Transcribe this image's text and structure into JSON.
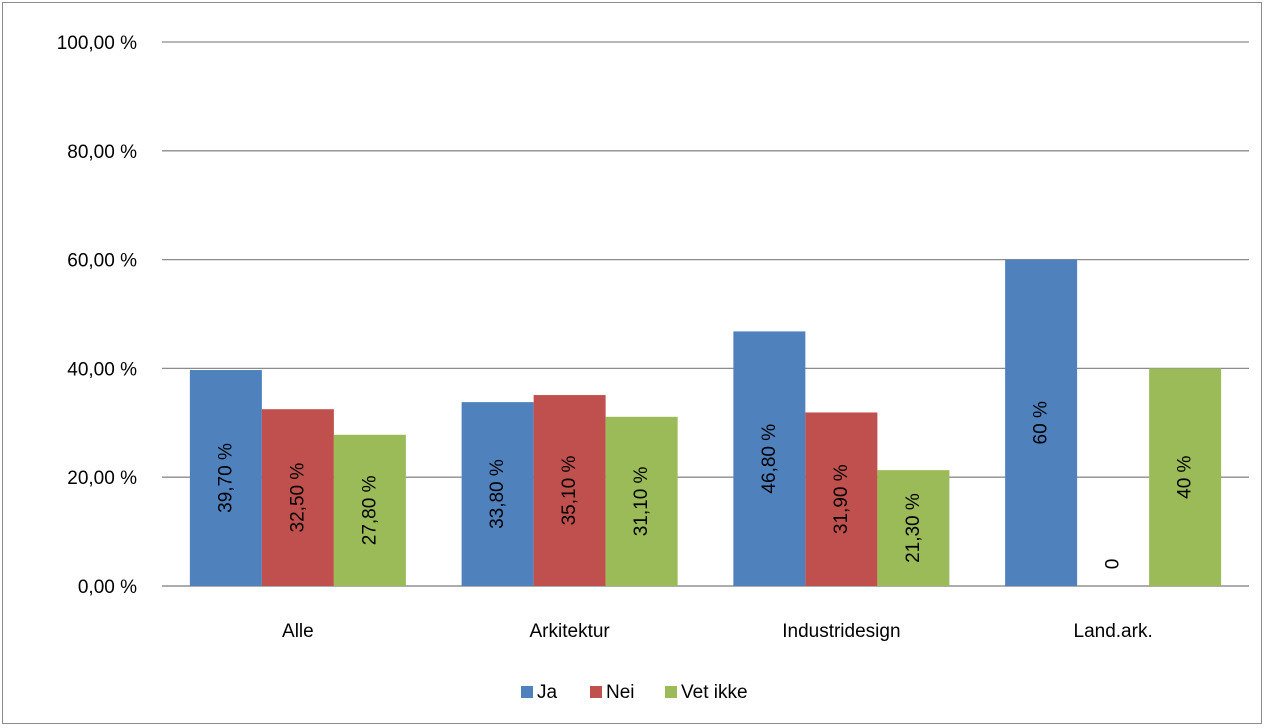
{
  "chart_data": {
    "type": "bar",
    "categories": [
      "Alle",
      "Arkitektur",
      "Industridesign",
      "Land.ark."
    ],
    "series": [
      {
        "name": "Ja",
        "color": "#4f81bd",
        "values": [
          39.7,
          33.8,
          46.8,
          60
        ],
        "labels": [
          "39,70 %",
          "33,80 %",
          "46,80 %",
          "60 %"
        ]
      },
      {
        "name": "Nei",
        "color": "#c0504d",
        "values": [
          32.5,
          35.1,
          31.9,
          0
        ],
        "labels": [
          "32,50 %",
          "35,10 %",
          "31,90 %",
          "0"
        ]
      },
      {
        "name": "Vet ikke",
        "color": "#9bbb59",
        "values": [
          27.8,
          31.1,
          21.3,
          40
        ],
        "labels": [
          "27,80 %",
          "31,10 %",
          "21,30 %",
          "40 %"
        ]
      }
    ],
    "ylim": [
      0,
      100
    ],
    "yticks": [
      0,
      20,
      40,
      60,
      80,
      100
    ],
    "ytick_labels": [
      "0,00 %",
      "20,00 %",
      "40,00 %",
      "60,00 %",
      "80,00 %",
      "100,00 %"
    ],
    "grid": true,
    "legend_position": "bottom"
  }
}
